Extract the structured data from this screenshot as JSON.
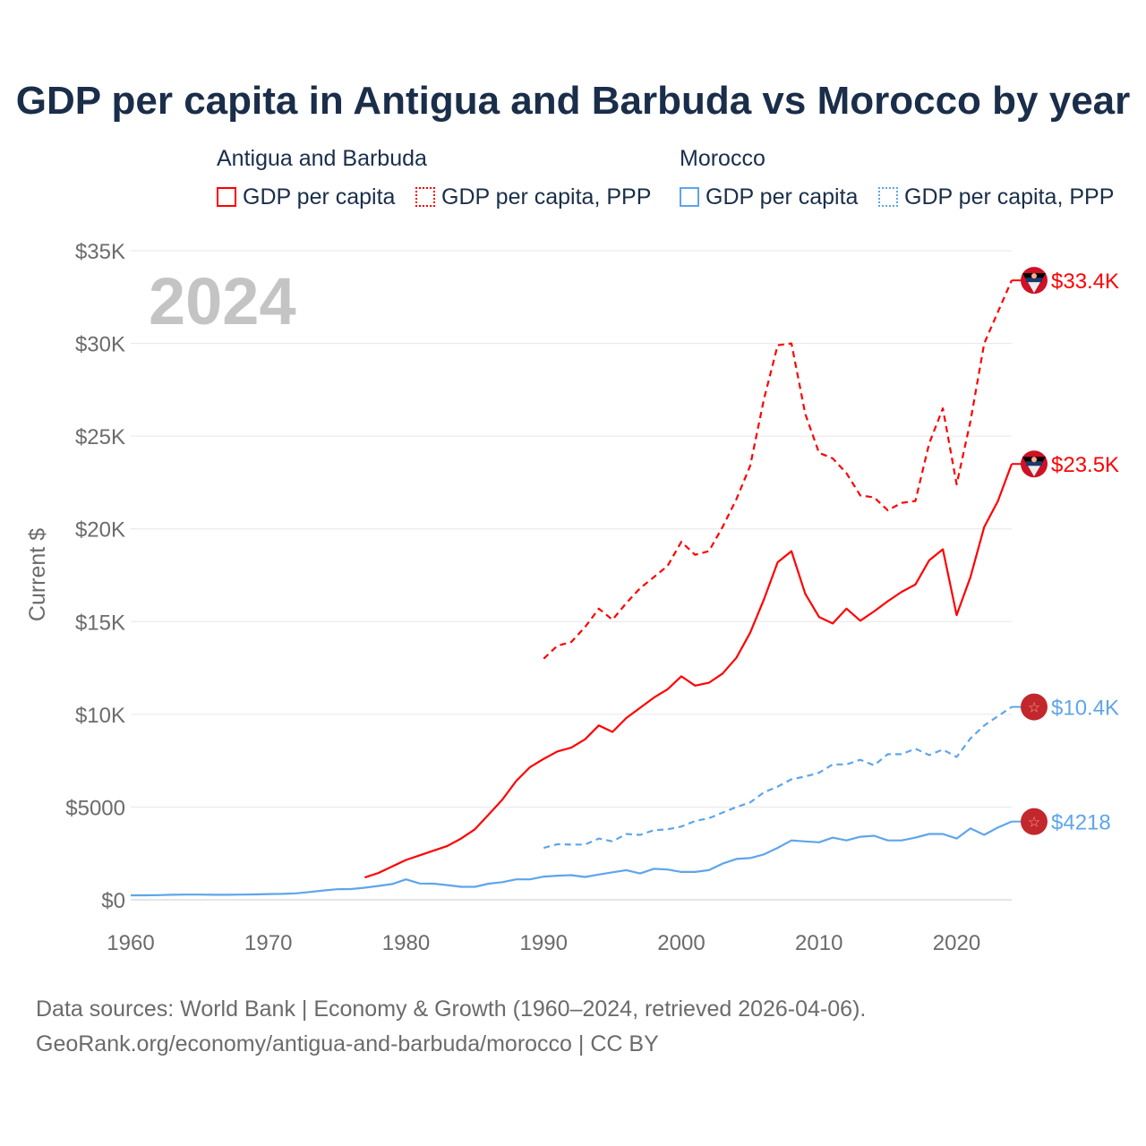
{
  "title": "GDP per capita in Antigua and Barbuda vs Morocco by year",
  "legend": {
    "groups": [
      {
        "name": "Antigua and Barbuda",
        "items": [
          "GDP per capita",
          "GDP per capita, PPP"
        ]
      },
      {
        "name": "Morocco",
        "items": [
          "GDP per capita",
          "GDP per capita, PPP"
        ]
      }
    ]
  },
  "colors": {
    "antigua": "#ff0000",
    "morocco": "#5ea5ea",
    "title": "#1a2e4a",
    "axis": "#6b6b6b",
    "year": "#c4c4c4"
  },
  "year_label": "2024",
  "sources": [
    "Data sources: World Bank | Economy & Growth (1960–2024, retrieved 2026-04-06).",
    "GeoRank.org/economy/antigua-and-barbuda/morocco | CC BY"
  ],
  "chart_data": {
    "type": "line",
    "title": "GDP per capita in Antigua and Barbuda vs Morocco by year",
    "xlabel": "",
    "ylabel": "Current $",
    "xlim": [
      1960,
      2024
    ],
    "ylim": [
      0,
      35000
    ],
    "grid": true,
    "legend_position": "top",
    "x_ticks": [
      1960,
      1970,
      1980,
      1990,
      2000,
      2010,
      2020
    ],
    "x_tick_labels": [
      "1960",
      "1970",
      "1980",
      "1990",
      "2000",
      "2010",
      "2020"
    ],
    "y_ticks": [
      0,
      5000,
      10000,
      15000,
      20000,
      25000,
      30000,
      35000
    ],
    "y_tick_labels": [
      "$0",
      "$5000",
      "$10K",
      "$15K",
      "$20K",
      "$25K",
      "$30K",
      "$35K"
    ],
    "series": [
      {
        "name": "Antigua and Barbuda — GDP per capita",
        "color": "#ff0000",
        "dash": false,
        "start": 1977,
        "end_label": "$23.5K",
        "flag": "antigua",
        "values": [
          1200,
          1450,
          1800,
          2150,
          2400,
          2650,
          2900,
          3300,
          3800,
          4600,
          5400,
          6400,
          7150,
          7600,
          8000,
          8200,
          8650,
          9400,
          9050,
          9800,
          10350,
          10900,
          11350,
          12050,
          11550,
          11700,
          12200,
          13050,
          14400,
          16200,
          18200,
          18800,
          16500,
          15250,
          14900,
          15700,
          15050,
          15550,
          16100,
          16600,
          17000,
          18300,
          18900,
          15350,
          17400,
          20100,
          21500,
          23500
        ]
      },
      {
        "name": "Antigua and Barbuda — GDP per capita, PPP",
        "color": "#ff0000",
        "dash": true,
        "start": 1990,
        "end_label": "$33.4K",
        "flag": "antigua",
        "values": [
          13000,
          13700,
          13900,
          14700,
          15700,
          15100,
          16000,
          16800,
          17400,
          18000,
          19300,
          18600,
          18800,
          20100,
          21600,
          23400,
          27000,
          29900,
          30000,
          26200,
          24100,
          23800,
          23000,
          21800,
          21700,
          21000,
          21400,
          21500,
          24600,
          26500,
          22400,
          25800,
          30000,
          31700,
          33400
        ]
      },
      {
        "name": "Morocco — GDP per capita",
        "color": "#5ea5ea",
        "dash": false,
        "start": 1960,
        "end_label": "$4218",
        "flag": "morocco",
        "values": [
          240,
          240,
          250,
          270,
          280,
          280,
          270,
          270,
          280,
          290,
          310,
          320,
          350,
          420,
          500,
          570,
          580,
          650,
          750,
          850,
          1100,
          880,
          870,
          790,
          700,
          700,
          870,
          950,
          1100,
          1100,
          1250,
          1300,
          1330,
          1230,
          1360,
          1480,
          1600,
          1420,
          1670,
          1630,
          1500,
          1500,
          1600,
          1950,
          2200,
          2250,
          2450,
          2800,
          3200,
          3150,
          3100,
          3350,
          3200,
          3400,
          3450,
          3200,
          3200,
          3350,
          3550,
          3550,
          3300,
          3850,
          3500,
          3900,
          4218
        ]
      },
      {
        "name": "Morocco — GDP per capita, PPP",
        "color": "#5ea5ea",
        "dash": true,
        "start": 1990,
        "end_label": "$10.4K",
        "flag": "morocco",
        "values": [
          2800,
          3000,
          2980,
          2980,
          3300,
          3150,
          3550,
          3500,
          3750,
          3800,
          3950,
          4250,
          4400,
          4700,
          5000,
          5250,
          5800,
          6100,
          6500,
          6650,
          6850,
          7300,
          7300,
          7550,
          7250,
          7850,
          7850,
          8150,
          7800,
          8100,
          7700,
          8700,
          9400,
          9900,
          10400
        ]
      }
    ]
  }
}
